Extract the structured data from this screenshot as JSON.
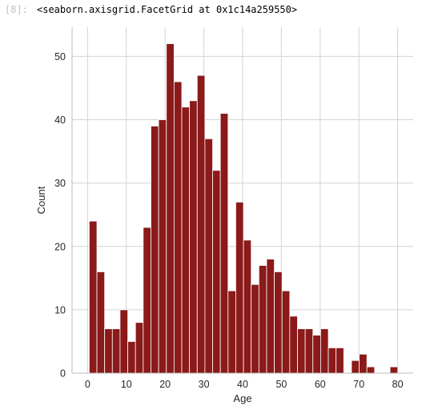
{
  "cell": {
    "prompt": "[8]:",
    "output_text": "<seaborn.axisgrid.FacetGrid at 0x1c14a259550>"
  },
  "chart_data": {
    "type": "bar",
    "xlabel": "Age",
    "ylabel": "Count",
    "xlim": [
      -4,
      84
    ],
    "ylim": [
      0,
      54.6
    ],
    "xticks": [
      0,
      10,
      20,
      30,
      40,
      50,
      60,
      70,
      80
    ],
    "yticks": [
      0,
      10,
      20,
      30,
      40,
      50
    ],
    "bar_color": "#8b1a1a",
    "bar_edge_color": "#ffffff",
    "grid": true,
    "bins": [
      {
        "x0": 0.42,
        "x1": 2.41,
        "count": 24
      },
      {
        "x0": 2.41,
        "x1": 4.4,
        "count": 16
      },
      {
        "x0": 4.4,
        "x1": 6.39,
        "count": 7
      },
      {
        "x0": 6.39,
        "x1": 8.38,
        "count": 7
      },
      {
        "x0": 8.38,
        "x1": 10.37,
        "count": 10
      },
      {
        "x0": 10.37,
        "x1": 12.36,
        "count": 5
      },
      {
        "x0": 12.36,
        "x1": 14.35,
        "count": 8
      },
      {
        "x0": 14.35,
        "x1": 16.34,
        "count": 23
      },
      {
        "x0": 16.34,
        "x1": 18.33,
        "count": 39
      },
      {
        "x0": 18.33,
        "x1": 20.32,
        "count": 40
      },
      {
        "x0": 20.32,
        "x1": 22.31,
        "count": 52
      },
      {
        "x0": 22.31,
        "x1": 24.3,
        "count": 46
      },
      {
        "x0": 24.3,
        "x1": 26.29,
        "count": 42
      },
      {
        "x0": 26.29,
        "x1": 28.28,
        "count": 43
      },
      {
        "x0": 28.28,
        "x1": 30.27,
        "count": 47
      },
      {
        "x0": 30.27,
        "x1": 32.26,
        "count": 37
      },
      {
        "x0": 32.26,
        "x1": 34.25,
        "count": 32
      },
      {
        "x0": 34.25,
        "x1": 36.24,
        "count": 41
      },
      {
        "x0": 36.24,
        "x1": 38.23,
        "count": 13
      },
      {
        "x0": 38.23,
        "x1": 40.22,
        "count": 27
      },
      {
        "x0": 40.22,
        "x1": 42.21,
        "count": 21
      },
      {
        "x0": 42.21,
        "x1": 44.2,
        "count": 14
      },
      {
        "x0": 44.2,
        "x1": 46.19,
        "count": 17
      },
      {
        "x0": 46.19,
        "x1": 48.18,
        "count": 18
      },
      {
        "x0": 48.18,
        "x1": 50.17,
        "count": 16
      },
      {
        "x0": 50.17,
        "x1": 52.16,
        "count": 13
      },
      {
        "x0": 52.16,
        "x1": 54.15,
        "count": 9
      },
      {
        "x0": 54.15,
        "x1": 56.14,
        "count": 7
      },
      {
        "x0": 56.14,
        "x1": 58.13,
        "count": 7
      },
      {
        "x0": 58.13,
        "x1": 60.12,
        "count": 6
      },
      {
        "x0": 60.12,
        "x1": 62.11,
        "count": 7
      },
      {
        "x0": 62.11,
        "x1": 64.1,
        "count": 4
      },
      {
        "x0": 64.1,
        "x1": 66.09,
        "count": 4
      },
      {
        "x0": 66.09,
        "x1": 68.08,
        "count": 0
      },
      {
        "x0": 68.08,
        "x1": 70.07,
        "count": 2
      },
      {
        "x0": 70.07,
        "x1": 72.06,
        "count": 3
      },
      {
        "x0": 72.06,
        "x1": 74.05,
        "count": 1
      },
      {
        "x0": 74.05,
        "x1": 76.04,
        "count": 0
      },
      {
        "x0": 76.04,
        "x1": 78.03,
        "count": 0
      },
      {
        "x0": 78.03,
        "x1": 80.02,
        "count": 1
      }
    ]
  }
}
